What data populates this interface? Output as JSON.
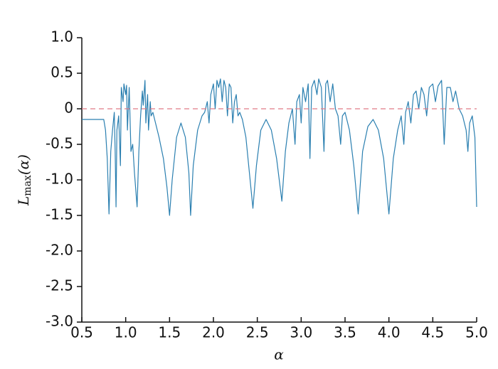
{
  "chart_data": {
    "type": "line",
    "xlabel": "α",
    "ylabel": {
      "main": "L",
      "sub": "max",
      "rest": "(α)"
    },
    "xlim": [
      0.5,
      5.0
    ],
    "ylim": [
      -3.0,
      1.0
    ],
    "xticks": [
      0.5,
      {
        "value": 1,
        "label": "1.0"
      },
      1.5,
      {
        "value": 2,
        "label": "2.0"
      },
      2.5,
      {
        "value": 3,
        "label": "3.0"
      },
      3.5,
      {
        "value": 4,
        "label": "4.0"
      },
      4.5,
      {
        "value": 5,
        "label": "5.0"
      }
    ],
    "yticks": [
      {
        "value": -3,
        "label": "-3.0"
      },
      -2.5,
      {
        "value": -2,
        "label": "-2.0"
      },
      -1.5,
      {
        "value": -1,
        "label": "-1.0"
      },
      -0.5,
      0,
      0.5,
      {
        "value": 1,
        "label": "1.0"
      }
    ],
    "reference_line": {
      "y": 0,
      "color": "#e07b86"
    },
    "series": [
      {
        "color": "#2a7fb0",
        "x": [
          0.5,
          0.75,
          0.77,
          0.79,
          0.81,
          0.83,
          0.85,
          0.87,
          0.88,
          0.89,
          0.9,
          0.92,
          0.94,
          0.95,
          0.97,
          0.98,
          1.0,
          1.01,
          1.02,
          1.04,
          1.06,
          1.08,
          1.1,
          1.13,
          1.15,
          1.17,
          1.19,
          1.2,
          1.22,
          1.23,
          1.25,
          1.26,
          1.28,
          1.29,
          1.31,
          1.34,
          1.38,
          1.43,
          1.47,
          1.5,
          1.53,
          1.58,
          1.63,
          1.68,
          1.72,
          1.74,
          1.77,
          1.82,
          1.87,
          1.9,
          1.93,
          1.95,
          1.97,
          2.0,
          2.02,
          2.04,
          2.06,
          2.08,
          2.1,
          2.12,
          2.14,
          2.16,
          2.18,
          2.2,
          2.22,
          2.24,
          2.26,
          2.28,
          2.3,
          2.33,
          2.37,
          2.41,
          2.45,
          2.49,
          2.54,
          2.6,
          2.66,
          2.72,
          2.78,
          2.82,
          2.86,
          2.9,
          2.93,
          2.95,
          2.98,
          3.0,
          3.02,
          3.05,
          3.08,
          3.1,
          3.12,
          3.15,
          3.18,
          3.2,
          3.23,
          3.26,
          3.28,
          3.3,
          3.33,
          3.36,
          3.39,
          3.42,
          3.45,
          3.47,
          3.5,
          3.55,
          3.6,
          3.65,
          3.7,
          3.76,
          3.82,
          3.88,
          3.94,
          4.0,
          4.05,
          4.1,
          4.14,
          4.17,
          4.19,
          4.22,
          4.25,
          4.28,
          4.31,
          4.34,
          4.37,
          4.4,
          4.43,
          4.46,
          4.5,
          4.53,
          4.56,
          4.6,
          4.63,
          4.66,
          4.7,
          4.73,
          4.76,
          4.8,
          4.84,
          4.88,
          4.9,
          4.92,
          4.95,
          4.98,
          5.0
        ],
        "values": [
          -0.15,
          -0.15,
          -0.3,
          -0.7,
          -1.48,
          -0.6,
          -0.3,
          -0.05,
          -0.6,
          -1.38,
          -0.3,
          -0.1,
          -0.8,
          0.3,
          0.1,
          0.35,
          0.2,
          0.33,
          -0.3,
          0.3,
          -0.6,
          -0.5,
          -0.9,
          -1.38,
          -0.6,
          -0.1,
          0.25,
          0.05,
          0.4,
          -0.2,
          0.2,
          -0.3,
          0.1,
          -0.1,
          -0.05,
          -0.2,
          -0.4,
          -0.7,
          -1.1,
          -1.5,
          -1.0,
          -0.4,
          -0.2,
          -0.4,
          -0.9,
          -1.5,
          -0.8,
          -0.3,
          -0.1,
          -0.05,
          0.1,
          -0.2,
          0.2,
          0.35,
          0.0,
          0.4,
          0.3,
          0.42,
          0.1,
          0.4,
          0.3,
          -0.1,
          0.35,
          0.3,
          -0.2,
          0.1,
          0.2,
          -0.1,
          -0.05,
          -0.15,
          -0.4,
          -0.9,
          -1.4,
          -0.8,
          -0.3,
          -0.15,
          -0.3,
          -0.7,
          -1.3,
          -0.6,
          -0.2,
          0.0,
          -0.5,
          0.1,
          0.2,
          -0.2,
          0.3,
          0.1,
          0.35,
          -0.7,
          0.3,
          0.4,
          0.2,
          0.42,
          0.3,
          -0.6,
          0.35,
          0.4,
          0.1,
          0.35,
          0.0,
          -0.1,
          -0.5,
          -0.1,
          -0.05,
          -0.3,
          -0.8,
          -1.48,
          -0.6,
          -0.25,
          -0.15,
          -0.3,
          -0.7,
          -1.48,
          -0.7,
          -0.3,
          -0.1,
          -0.5,
          -0.05,
          0.1,
          -0.2,
          0.2,
          0.25,
          0.0,
          0.3,
          0.2,
          -0.1,
          0.3,
          0.35,
          0.1,
          0.32,
          0.4,
          -0.5,
          0.3,
          0.3,
          0.1,
          0.25,
          0.0,
          -0.1,
          -0.3,
          -0.6,
          -0.2,
          -0.1,
          -0.4,
          -1.38
        ]
      }
    ]
  }
}
